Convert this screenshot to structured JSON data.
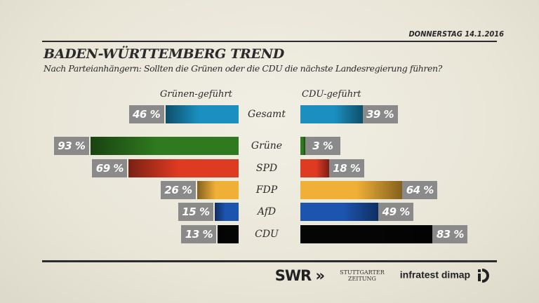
{
  "header": {
    "date": "DONNERSTAG  14.1.2016",
    "title": "BADEN-WÜRTTEMBERG TREND",
    "subtitle": "Nach Parteianhängern: Sollten die Grünen oder die CDU die nächste Landesregierung führen?"
  },
  "chart_data": {
    "type": "bar",
    "orientation": "horizontal-diverging",
    "categories": [
      "Gesamt",
      "Grüne",
      "SPD",
      "FDP",
      "AfD",
      "CDU"
    ],
    "series": [
      {
        "name": "Grünen-geführt",
        "values": [
          46,
          93,
          69,
          26,
          15,
          13
        ]
      },
      {
        "name": "CDU-geführt",
        "values": [
          39,
          3,
          18,
          64,
          49,
          83
        ]
      }
    ],
    "unit": "%",
    "colors": [
      "#1a8fc0",
      "#2f7a1f",
      "#df3a22",
      "#f0b037",
      "#1c55b0",
      "#050505"
    ],
    "label_box_color": "#8a8a8a"
  },
  "logos": {
    "swr": "SWR",
    "swr_icon": "double-chevron-right",
    "stz": [
      "STUTTGARTER",
      "ZEITUNG"
    ],
    "infratest": "infratest dimap"
  }
}
